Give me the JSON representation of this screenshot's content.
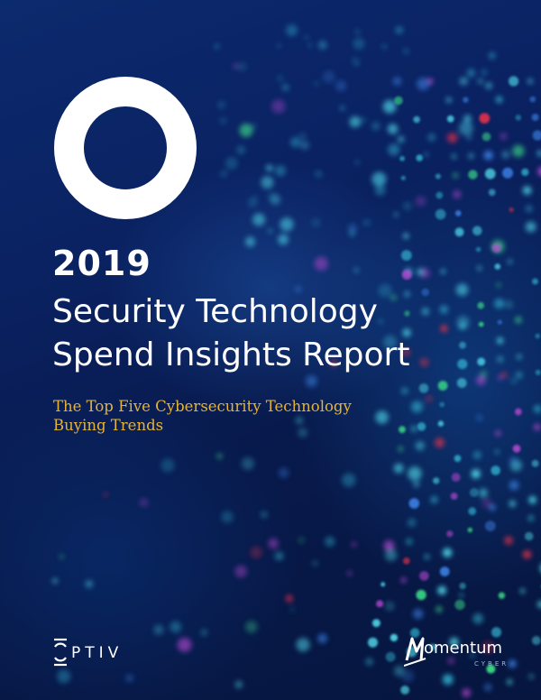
{
  "cover": {
    "year": "2019",
    "title_lines": [
      "Security Technology",
      "Spend Insights Report"
    ],
    "subtitle_lines": [
      "The Top Five Cybersecurity Technology",
      "Buying Trends"
    ]
  },
  "logos": {
    "left": {
      "wordmark": "PTIV"
    },
    "right": {
      "initial": "M",
      "wordmark": "omentum",
      "tagline": "CYBER"
    }
  },
  "colors": {
    "background": "#0a2160",
    "title": "#ffffff",
    "subtitle": "#e4b43a",
    "dot_cyan": "#4fd7e8",
    "dot_teal": "#2fa8c8",
    "dot_green": "#3de08a",
    "dot_red": "#e8314a",
    "dot_magenta": "#c04ad8",
    "dot_blue": "#3a7ee0"
  }
}
